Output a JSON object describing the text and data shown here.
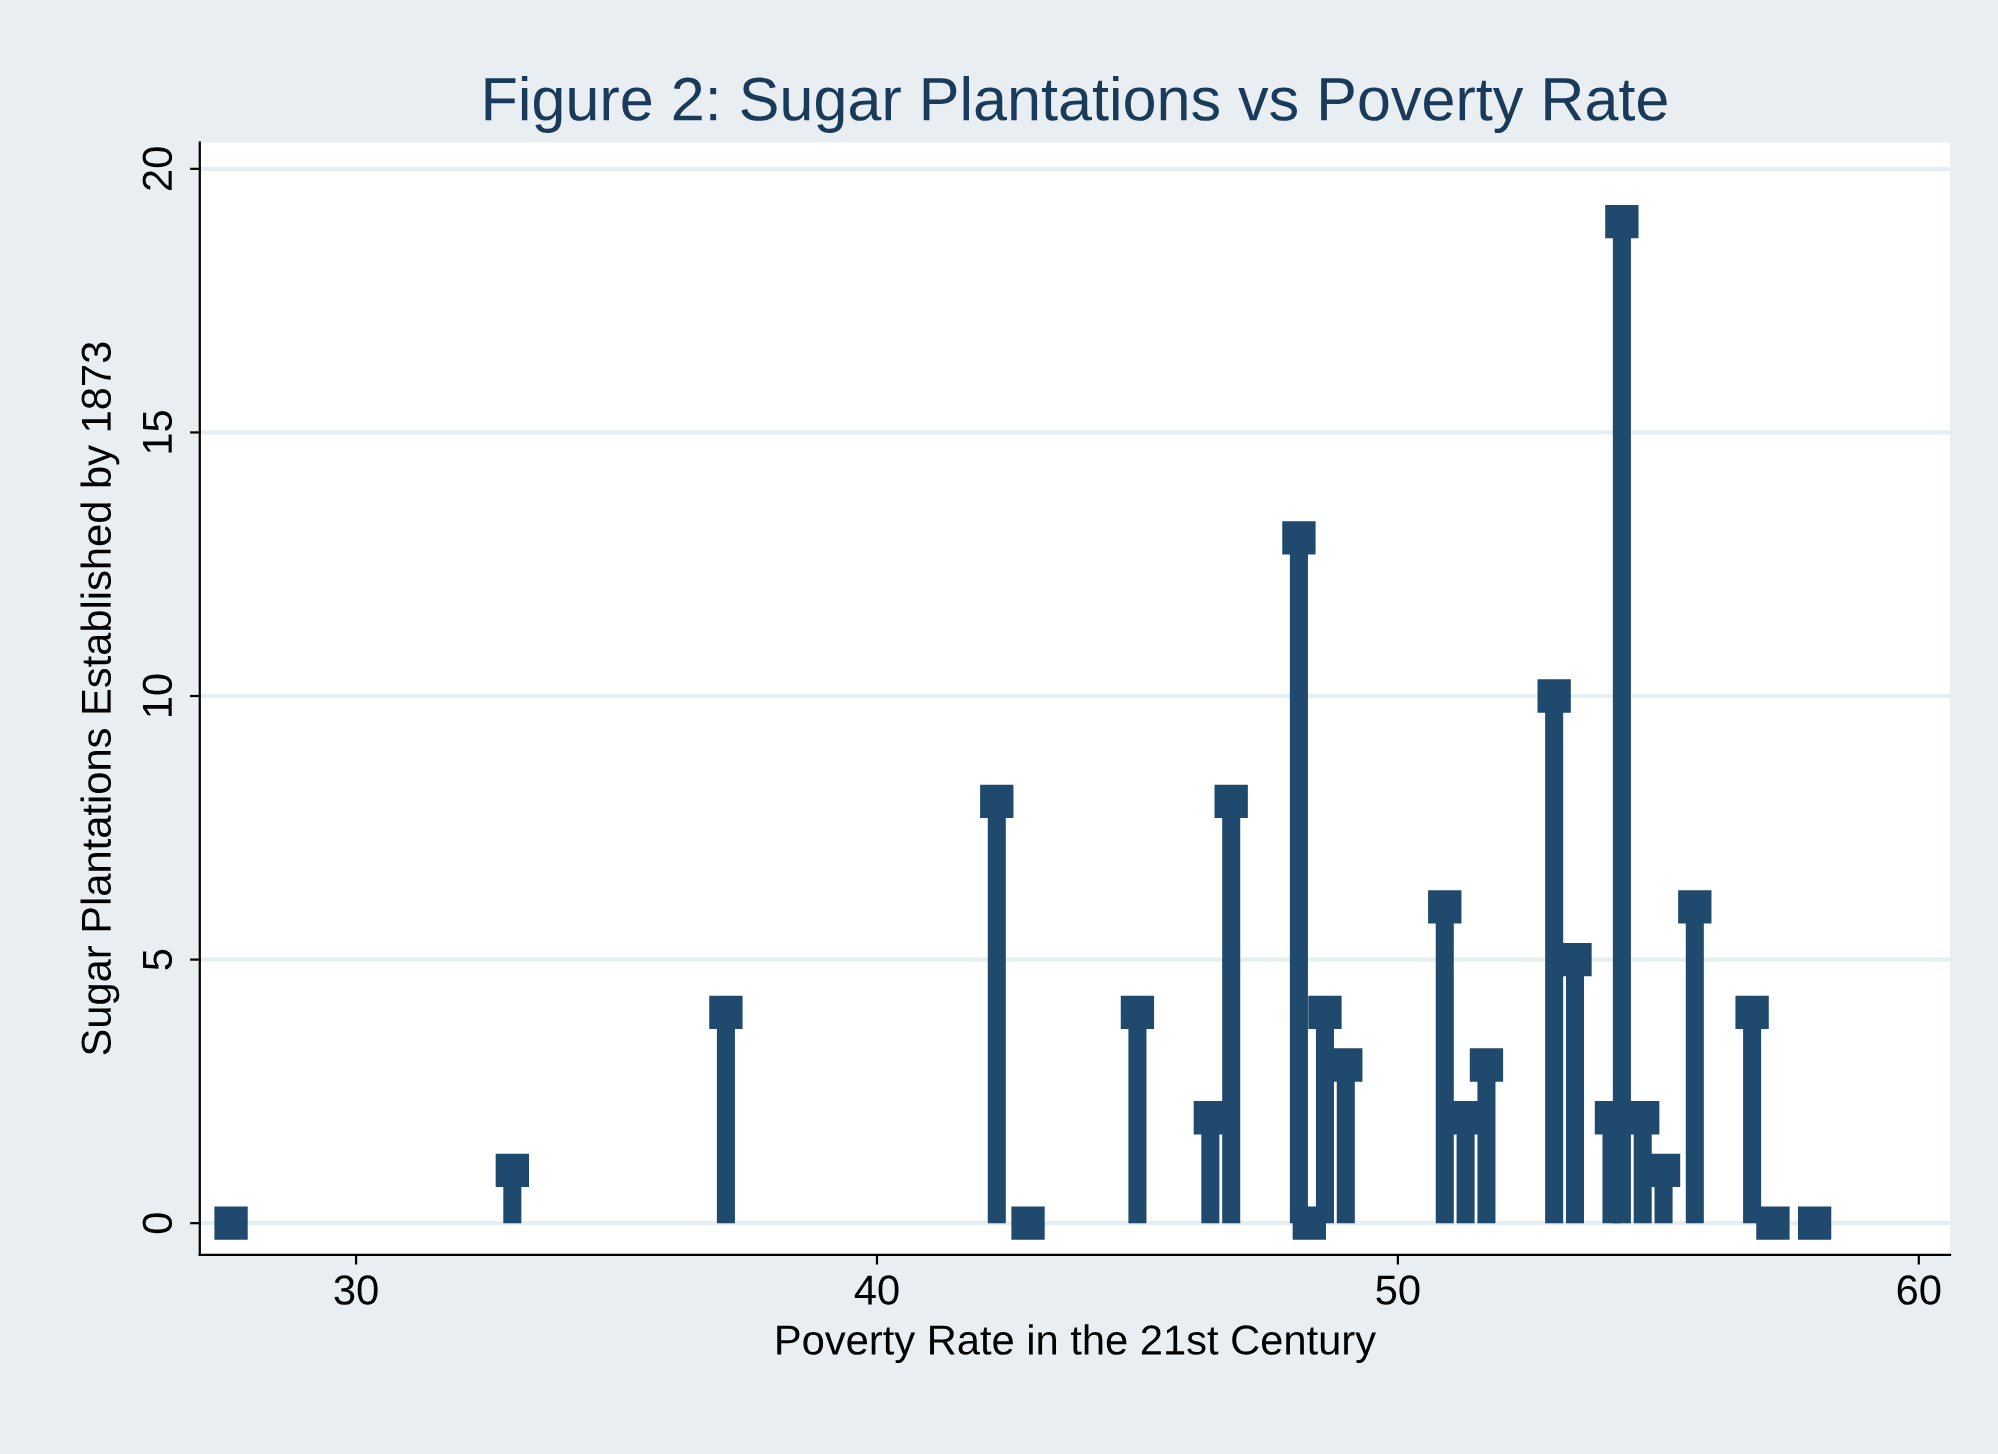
{
  "chart_data": {
    "type": "lollipop",
    "title": "Figure 2: Sugar Plantations vs Poverty Rate",
    "xlabel": "Poverty Rate in the 21st Century",
    "ylabel": "Sugar Plantations Established by 1873",
    "x": [
      27.6,
      33.0,
      37.1,
      42.3,
      42.9,
      45.0,
      46.4,
      46.8,
      48.1,
      48.3,
      48.6,
      49.0,
      50.9,
      51.3,
      51.7,
      53.0,
      53.4,
      54.1,
      54.3,
      54.7,
      55.1,
      55.7,
      56.8,
      57.2,
      58.0
    ],
    "values": [
      0,
      1,
      4,
      8,
      0,
      4,
      2,
      8,
      13,
      0,
      4,
      3,
      6,
      2,
      3,
      10,
      5,
      2,
      19,
      2,
      1,
      6,
      4,
      0,
      0
    ],
    "color": "#1f4a6e",
    "marker": "square",
    "xlim": [
      27,
      60.6
    ],
    "xticks": [
      30,
      40,
      50,
      60
    ],
    "ylim": [
      -0.6,
      20.5
    ],
    "yticks": [
      0,
      5,
      10,
      15,
      20
    ],
    "grid": "y"
  }
}
